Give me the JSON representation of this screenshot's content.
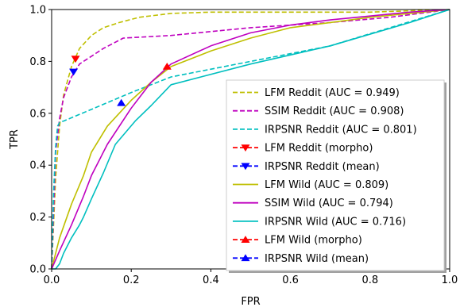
{
  "chart_data": {
    "type": "line",
    "xlabel": "FPR",
    "ylabel": "TPR",
    "xlim": [
      0.0,
      1.0
    ],
    "ylim": [
      0.0,
      1.0
    ],
    "xticks": [
      "0.0",
      "0.2",
      "0.4",
      "0.6",
      "0.8",
      "1.0"
    ],
    "yticks": [
      "0.0",
      "0.2",
      "0.4",
      "0.6",
      "0.8",
      "1.0"
    ],
    "grid": false,
    "legend_position": "bottom-right",
    "series": [
      {
        "name": "LFM  Reddit (AUC = 0.949)",
        "kind": "line",
        "dashed": true,
        "color": "#bfbf00",
        "x": [
          0.0,
          0.01,
          0.02,
          0.03,
          0.05,
          0.07,
          0.1,
          0.13,
          0.17,
          0.22,
          0.3,
          0.4,
          0.5,
          0.6,
          0.8,
          1.0
        ],
        "y": [
          0.0,
          0.35,
          0.55,
          0.67,
          0.78,
          0.85,
          0.9,
          0.93,
          0.95,
          0.97,
          0.985,
          0.99,
          0.99,
          0.99,
          0.99,
          1.0
        ]
      },
      {
        "name": "SSIM Reddit (AUC = 0.908)",
        "kind": "line",
        "dashed": true,
        "color": "#bf00bf",
        "x": [
          0.0,
          0.01,
          0.02,
          0.03,
          0.05,
          0.07,
          0.1,
          0.13,
          0.18,
          0.3,
          0.5,
          0.7,
          0.85,
          1.0
        ],
        "y": [
          0.0,
          0.45,
          0.58,
          0.66,
          0.74,
          0.79,
          0.82,
          0.85,
          0.89,
          0.9,
          0.93,
          0.95,
          0.97,
          1.0
        ]
      },
      {
        "name": "IRPSNR Reddit (AUC = 0.801)",
        "kind": "line",
        "dashed": true,
        "color": "#00bfbf",
        "x": [
          0.0,
          0.005,
          0.01,
          0.015,
          0.02,
          0.03,
          0.1,
          0.2,
          0.3,
          0.5,
          0.7,
          1.0
        ],
        "y": [
          0.0,
          0.3,
          0.47,
          0.55,
          0.565,
          0.57,
          0.615,
          0.68,
          0.74,
          0.8,
          0.86,
          1.0
        ]
      },
      {
        "name": "LFM Reddit (morpho)",
        "kind": "marker",
        "marker": "triangle-down",
        "color": "#ff0000",
        "x": [
          0.06
        ],
        "y": [
          0.81
        ]
      },
      {
        "name": "IRPSNR Reddit (mean)",
        "kind": "marker",
        "marker": "triangle-down",
        "color": "#0000ff",
        "x": [
          0.055
        ],
        "y": [
          0.76
        ]
      },
      {
        "name": "LFM Wild (AUC = 0.809)",
        "kind": "line",
        "dashed": false,
        "color": "#bfbf00",
        "x": [
          0.0,
          0.02,
          0.05,
          0.08,
          0.1,
          0.14,
          0.2,
          0.25,
          0.3,
          0.4,
          0.5,
          0.6,
          0.7,
          0.8,
          0.9,
          1.0
        ],
        "y": [
          0.0,
          0.12,
          0.25,
          0.36,
          0.45,
          0.55,
          0.65,
          0.72,
          0.78,
          0.84,
          0.89,
          0.93,
          0.95,
          0.97,
          0.985,
          1.0
        ]
      },
      {
        "name": "SSIM Wild (AUC = 0.794)",
        "kind": "line",
        "dashed": false,
        "color": "#bf00bf",
        "x": [
          0.0,
          0.02,
          0.05,
          0.08,
          0.1,
          0.14,
          0.2,
          0.25,
          0.3,
          0.4,
          0.5,
          0.6,
          0.7,
          0.8,
          0.9,
          1.0
        ],
        "y": [
          0.0,
          0.07,
          0.17,
          0.28,
          0.36,
          0.48,
          0.62,
          0.72,
          0.79,
          0.86,
          0.91,
          0.94,
          0.96,
          0.975,
          0.99,
          1.0
        ]
      },
      {
        "name": "IRPSNR Wild (AUC = 0.716)",
        "kind": "line",
        "dashed": false,
        "color": "#00bfbf",
        "x": [
          0.0,
          0.01,
          0.02,
          0.03,
          0.05,
          0.07,
          0.08,
          0.1,
          0.13,
          0.16,
          0.21,
          0.25,
          0.3,
          0.5,
          0.7,
          0.9,
          1.0
        ],
        "y": [
          0.0,
          0.0,
          0.02,
          0.06,
          0.12,
          0.17,
          0.2,
          0.27,
          0.37,
          0.48,
          0.57,
          0.63,
          0.71,
          0.79,
          0.86,
          0.95,
          1.0
        ]
      },
      {
        "name": "LFM Wild (morpho)",
        "kind": "marker",
        "marker": "triangle-up",
        "color": "#ff0000",
        "x": [
          0.29
        ],
        "y": [
          0.78
        ]
      },
      {
        "name": "IRPSNR Wild (mean)",
        "kind": "marker",
        "marker": "triangle-up",
        "color": "#0000ff",
        "x": [
          0.175
        ],
        "y": [
          0.64
        ]
      }
    ]
  }
}
